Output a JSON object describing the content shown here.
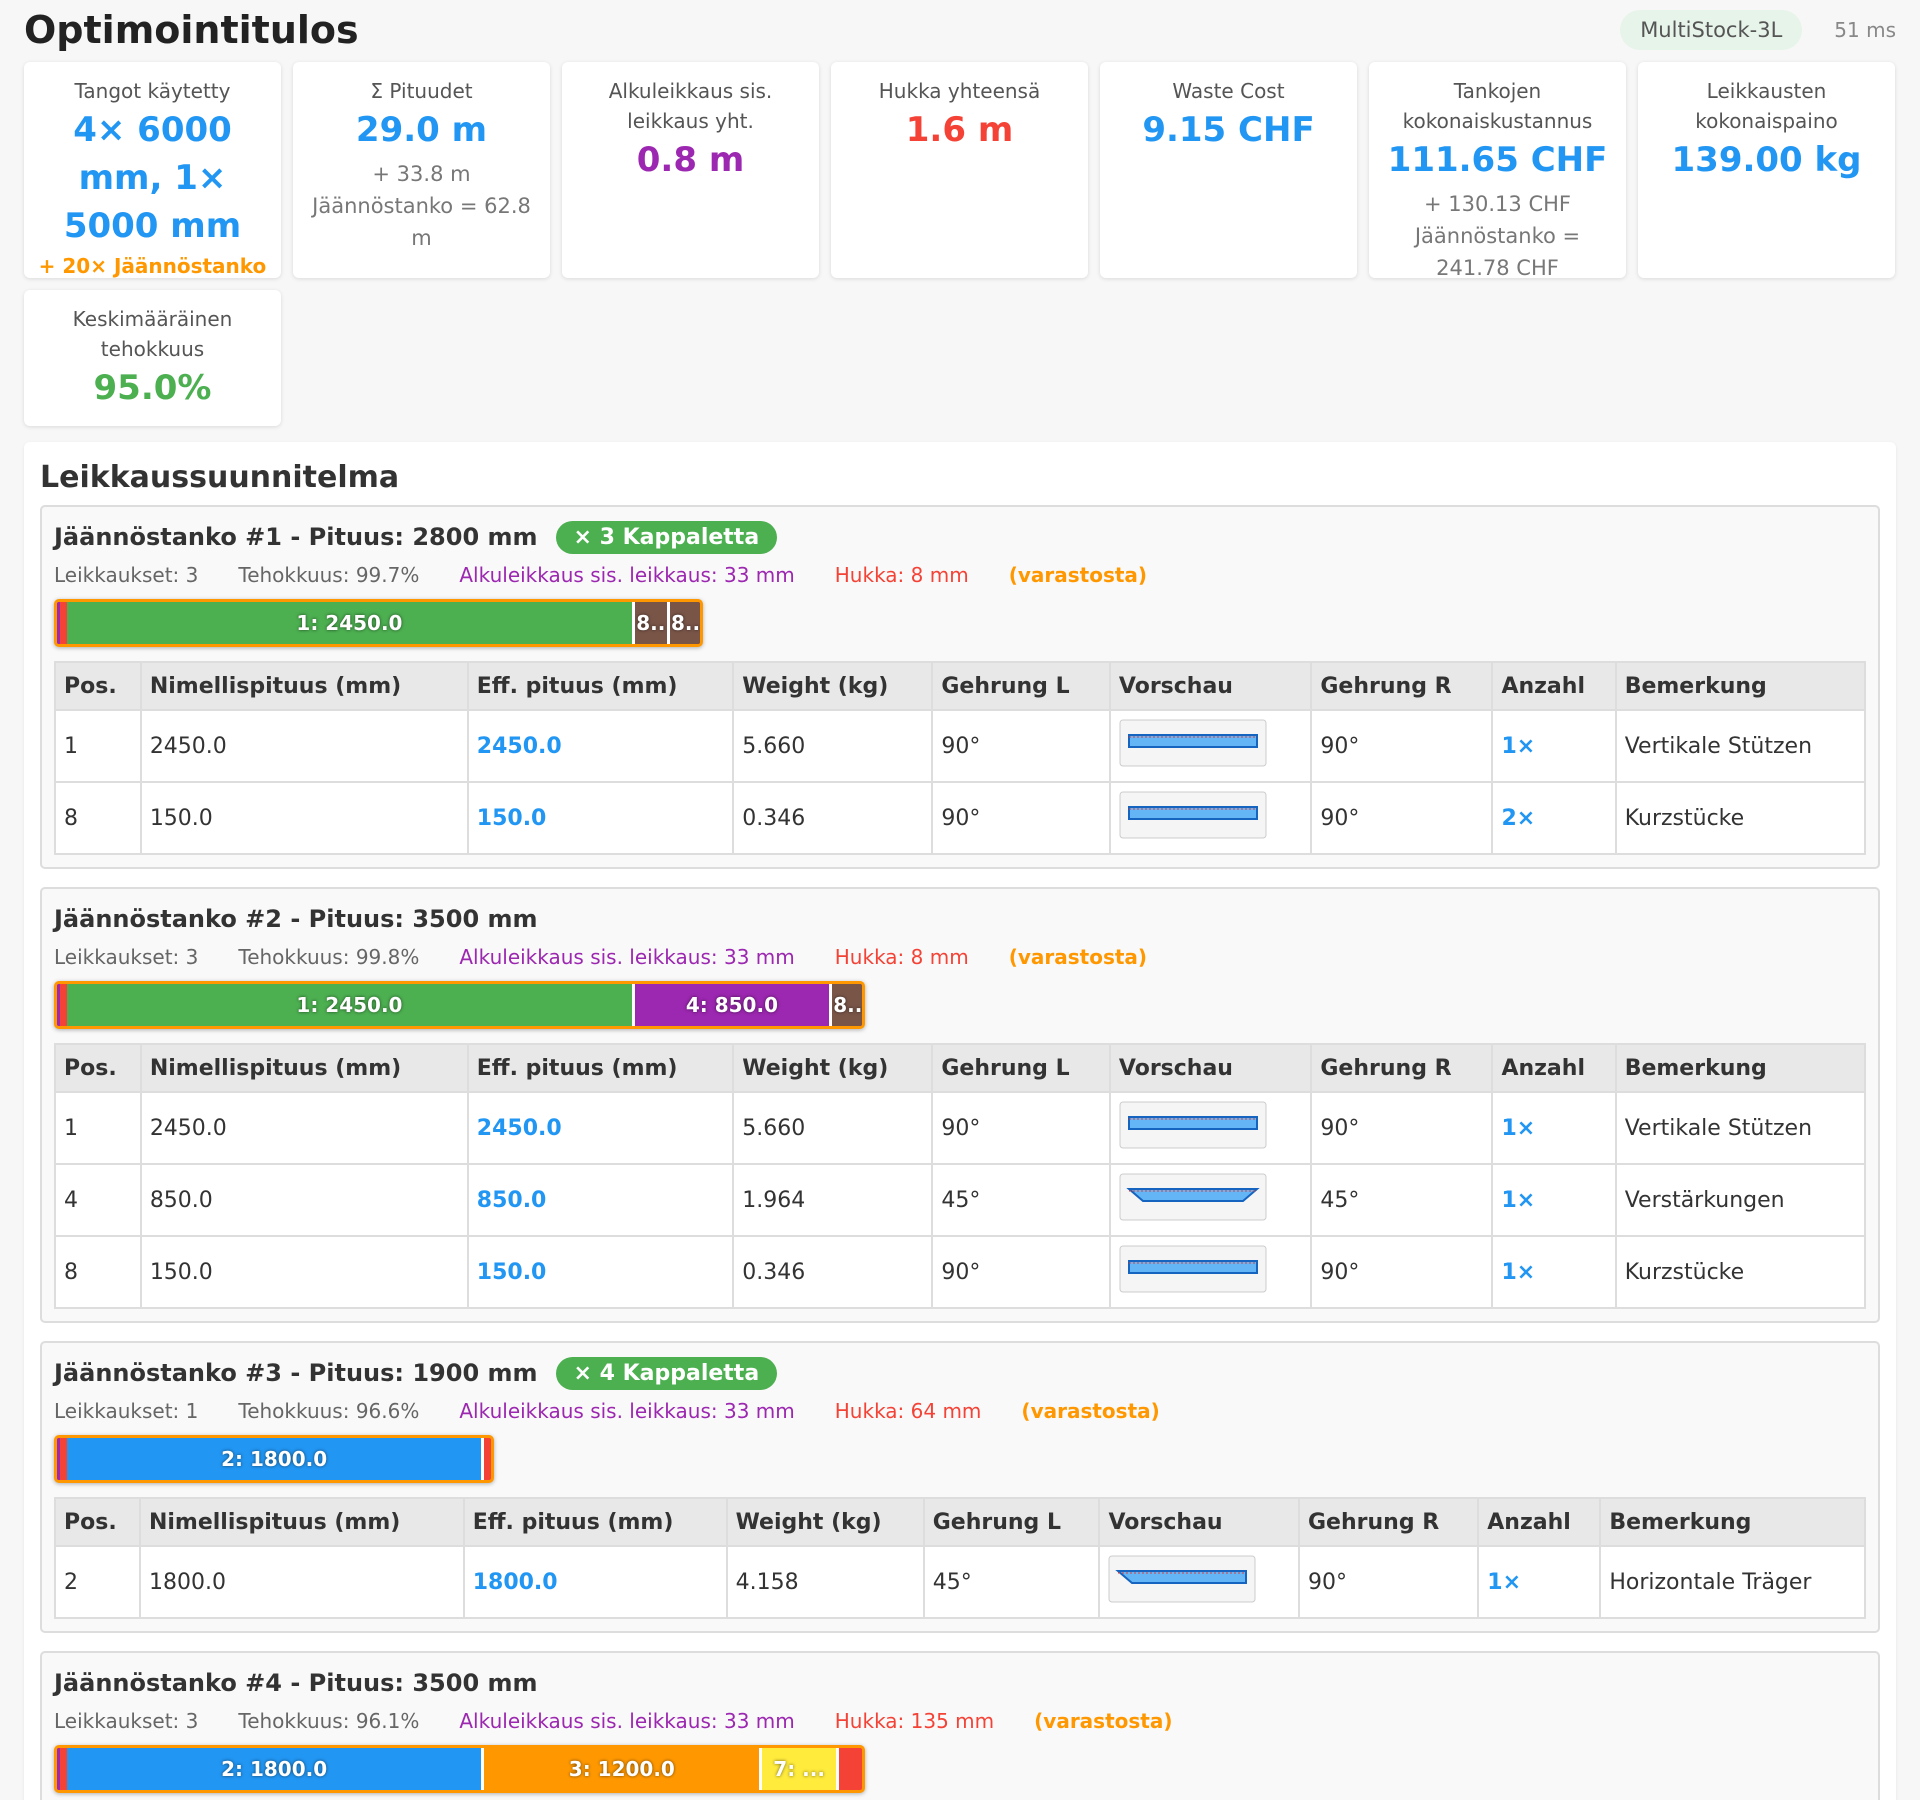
{
  "header": {
    "title": "Optimointitulos",
    "algorithm": "MultiStock-3L",
    "time": "51 ms"
  },
  "stats": [
    {
      "label": "Tangot käytetty",
      "value": "4× 6000 mm, 1× 5000 mm",
      "color": "#2196f3",
      "extra": "+ 20× Jäännöstanko"
    },
    {
      "label": "Σ Pituudet",
      "value": "29.0 m",
      "color": "#2196f3",
      "note": "+ 33.8 m Jäännöstanko = 62.8 m"
    },
    {
      "label": "Alkuleikkaus sis. leikkaus yht.",
      "value": "0.8 m",
      "color": "#9c27b0"
    },
    {
      "label": "Hukka yhteensä",
      "value": "1.6 m",
      "color": "#f44336"
    },
    {
      "label": "Waste Cost",
      "value": "9.15 CHF",
      "color": "#2196f3"
    },
    {
      "label": "Tankojen kokonaiskustannus",
      "value": "111.65 CHF",
      "color": "#2196f3",
      "note": "+ 130.13 CHF Jäännöstanko = 241.78 CHF"
    },
    {
      "label": "Leikkausten kokonaispaino",
      "value": "139.00 kg",
      "color": "#2196f3"
    },
    {
      "label": "Keskimääräinen tehokkuus",
      "value": "95.0%",
      "color": "#4caf50"
    }
  ],
  "plan": {
    "title": "Leikkaussuunnitelma",
    "columns": [
      "Pos.",
      "Nimellispituus (mm)",
      "Eff. pituus (mm)",
      "Weight (kg)",
      "Gehrung L",
      "Vorschau",
      "Gehrung R",
      "Anzahl",
      "Bemerkung"
    ],
    "bars": [
      {
        "title": "Jäännöstanko #1 - Pituus: 2800 mm",
        "length": 2800,
        "badge": "× 3 Kappaletta",
        "cuts": "Leikkaukset: 3",
        "efficiency": "Tehokkuus: 99.7%",
        "trim": "Alkuleikkaus sis. leikkaus: 33 mm",
        "waste": "Hukka: 8 mm",
        "source": "(varastosta)",
        "segments": [
          {
            "label": "1: 2450.0",
            "length": 2450,
            "color": "#4caf50"
          },
          {
            "label": "8..",
            "length": 150,
            "color": "#795548"
          },
          {
            "label": "8..",
            "length": 150,
            "color": "#795548"
          }
        ],
        "rows": [
          {
            "pos": "1",
            "nominal": "2450.0",
            "eff": "2450.0",
            "weight": "5.660",
            "miter_l": "90°",
            "miter_r": "90°",
            "count": "1×",
            "note": "Vertikale Stützen",
            "preview": "none"
          },
          {
            "pos": "8",
            "nominal": "150.0",
            "eff": "150.0",
            "weight": "0.346",
            "miter_l": "90°",
            "miter_r": "90°",
            "count": "2×",
            "note": "Kurzstücke",
            "preview": "none"
          }
        ]
      },
      {
        "title": "Jäännöstanko #2 - Pituus: 3500 mm",
        "length": 3500,
        "cuts": "Leikkaukset: 3",
        "efficiency": "Tehokkuus: 99.8%",
        "trim": "Alkuleikkaus sis. leikkaus: 33 mm",
        "waste": "Hukka: 8 mm",
        "source": "(varastosta)",
        "segments": [
          {
            "label": "1: 2450.0",
            "length": 2450,
            "color": "#4caf50"
          },
          {
            "label": "4: 850.0",
            "length": 850,
            "color": "#9c27b0"
          },
          {
            "label": "8..",
            "length": 150,
            "color": "#795548"
          }
        ],
        "rows": [
          {
            "pos": "1",
            "nominal": "2450.0",
            "eff": "2450.0",
            "weight": "5.660",
            "miter_l": "90°",
            "miter_r": "90°",
            "count": "1×",
            "note": "Vertikale Stützen",
            "preview": "none"
          },
          {
            "pos": "4",
            "nominal": "850.0",
            "eff": "850.0",
            "weight": "1.964",
            "miter_l": "45°",
            "miter_r": "45°",
            "count": "1×",
            "note": "Verstärkungen",
            "preview": "both"
          },
          {
            "pos": "8",
            "nominal": "150.0",
            "eff": "150.0",
            "weight": "0.346",
            "miter_l": "90°",
            "miter_r": "90°",
            "count": "1×",
            "note": "Kurzstücke",
            "preview": "none"
          }
        ]
      },
      {
        "title": "Jäännöstanko #3 - Pituus: 1900 mm",
        "length": 1900,
        "badge": "× 4 Kappaletta",
        "cuts": "Leikkaukset: 1",
        "efficiency": "Tehokkuus: 96.6%",
        "trim": "Alkuleikkaus sis. leikkaus: 33 mm",
        "waste": "Hukka: 64 mm",
        "source": "(varastosta)",
        "segments": [
          {
            "label": "2: 1800.0",
            "length": 1800,
            "color": "#2196f3"
          }
        ],
        "rows": [
          {
            "pos": "2",
            "nominal": "1800.0",
            "eff": "1800.0",
            "weight": "4.158",
            "miter_l": "45°",
            "miter_r": "90°",
            "count": "1×",
            "note": "Horizontale Träger",
            "preview": "left"
          }
        ]
      },
      {
        "title": "Jäännöstanko #4 - Pituus: 3500 mm",
        "length": 3500,
        "cuts": "Leikkaukset: 3",
        "efficiency": "Tehokkuus: 96.1%",
        "trim": "Alkuleikkaus sis. leikkaus: 33 mm",
        "waste": "Hukka: 135 mm",
        "source": "(varastosta)",
        "segments": [
          {
            "label": "2: 1800.0",
            "length": 1800,
            "color": "#2196f3"
          },
          {
            "label": "3: 1200.0",
            "length": 1200,
            "color": "#ff9800"
          },
          {
            "label": "7: ...",
            "length": 330,
            "color": "#ffeb3b"
          }
        ],
        "rows": []
      }
    ]
  }
}
